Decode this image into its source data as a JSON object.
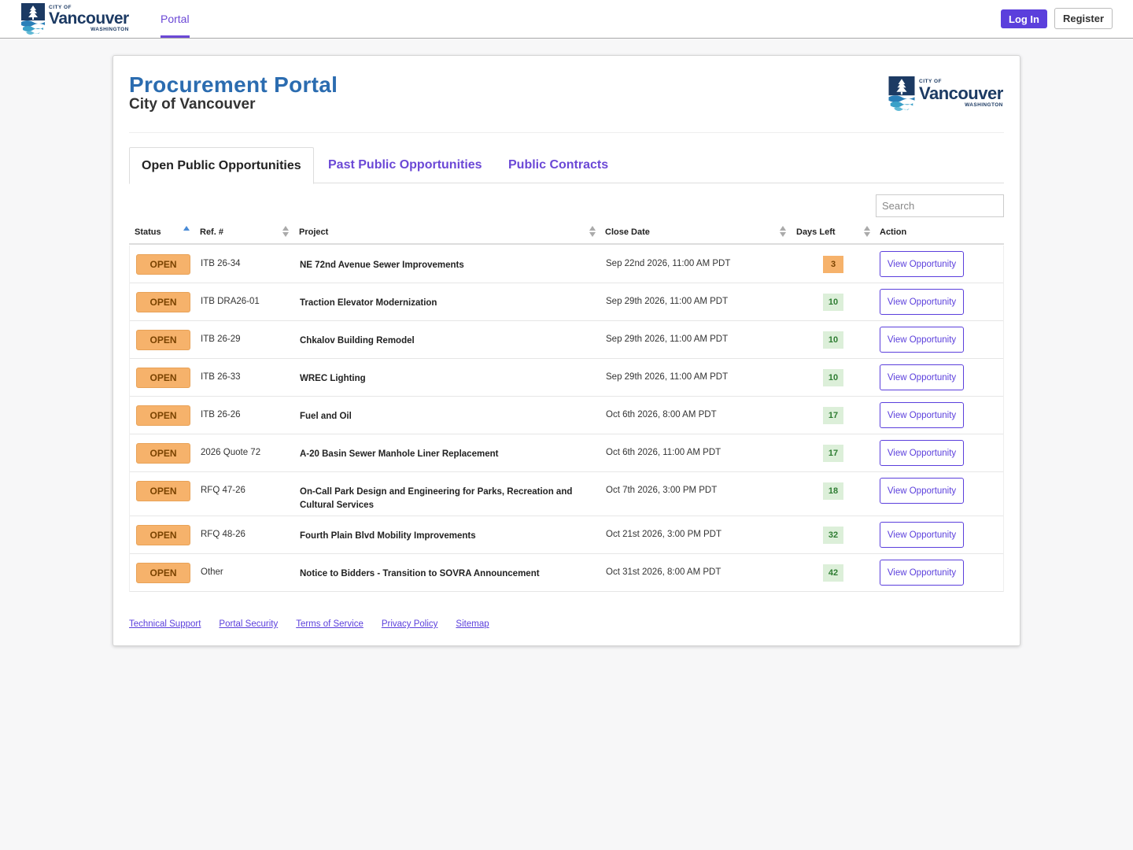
{
  "header": {
    "logo": {
      "city_of": "CITY OF",
      "name": "Vancouver",
      "state": "WASHINGTON"
    },
    "nav_portal": "Portal",
    "login_label": "Log In",
    "register_label": "Register"
  },
  "card": {
    "title": "Procurement Portal",
    "subtitle": "City of Vancouver",
    "logo": {
      "city_of": "CITY OF",
      "name": "Vancouver",
      "state": "WASHINGTON"
    }
  },
  "tabs": [
    {
      "label": "Open Public Opportunities",
      "active": true
    },
    {
      "label": "Past Public Opportunities",
      "active": false
    },
    {
      "label": "Public Contracts",
      "active": false
    }
  ],
  "search": {
    "placeholder": "Search",
    "value": ""
  },
  "table": {
    "columns": [
      "Status",
      "Ref. #",
      "Project",
      "Close Date",
      "Days Left",
      "Action"
    ],
    "rows": [
      {
        "status": "OPEN",
        "ref": "ITB 26-34",
        "project": "NE 72nd Avenue Sewer Improvements",
        "close_date": "Sep 22nd 2026, 11:00 AM PDT",
        "days_left": "3",
        "action": "View Opportunity"
      },
      {
        "status": "OPEN",
        "ref": "ITB DRA26-01",
        "project": "Traction Elevator Modernization",
        "close_date": "Sep 29th 2026, 11:00 AM PDT",
        "days_left": "10",
        "action": "View Opportunity"
      },
      {
        "status": "OPEN",
        "ref": "ITB 26-29",
        "project": "Chkalov Building Remodel",
        "close_date": "Sep 29th 2026, 11:00 AM PDT",
        "days_left": "10",
        "action": "View Opportunity"
      },
      {
        "status": "OPEN",
        "ref": "ITB 26-33",
        "project": "WREC Lighting",
        "close_date": "Sep 29th 2026, 11:00 AM PDT",
        "days_left": "10",
        "action": "View Opportunity"
      },
      {
        "status": "OPEN",
        "ref": "ITB 26-26",
        "project": "Fuel and Oil",
        "close_date": "Oct 6th 2026, 8:00 AM PDT",
        "days_left": "17",
        "action": "View Opportunity"
      },
      {
        "status": "OPEN",
        "ref": "2026 Quote 72",
        "project": "A-20 Basin Sewer Manhole Liner Replacement",
        "close_date": "Oct 6th 2026, 11:00 AM PDT",
        "days_left": "17",
        "action": "View Opportunity"
      },
      {
        "status": "OPEN",
        "ref": "RFQ 47-26",
        "project": "On-Call Park Design and Engineering for Parks, Recreation and Cultural Services",
        "close_date": "Oct 7th 2026, 3:00 PM PDT",
        "days_left": "18",
        "action": "View Opportunity"
      },
      {
        "status": "OPEN",
        "ref": "RFQ 48-26",
        "project": "Fourth Plain Blvd Mobility Improvements",
        "close_date": "Oct 21st 2026, 3:00 PM PDT",
        "days_left": "32",
        "action": "View Opportunity"
      },
      {
        "status": "OPEN",
        "ref": "Other",
        "project": "Notice to Bidders - Transition to SOVRA Announcement",
        "close_date": "Oct 31st 2026, 8:00 AM PDT",
        "days_left": "42",
        "action": "View Opportunity"
      }
    ]
  },
  "footer_links": [
    "Technical Support",
    "Portal Security",
    "Terms of Service",
    "Privacy Policy",
    "Sitemap"
  ],
  "colors": {
    "accent": "#5b3fdc",
    "title_blue": "#2b6cb0",
    "open_badge": "#f6b26b",
    "days_ok": "#dcefd9",
    "days_warn": "#f6b26b",
    "logo_navy": "#1c3a63"
  }
}
